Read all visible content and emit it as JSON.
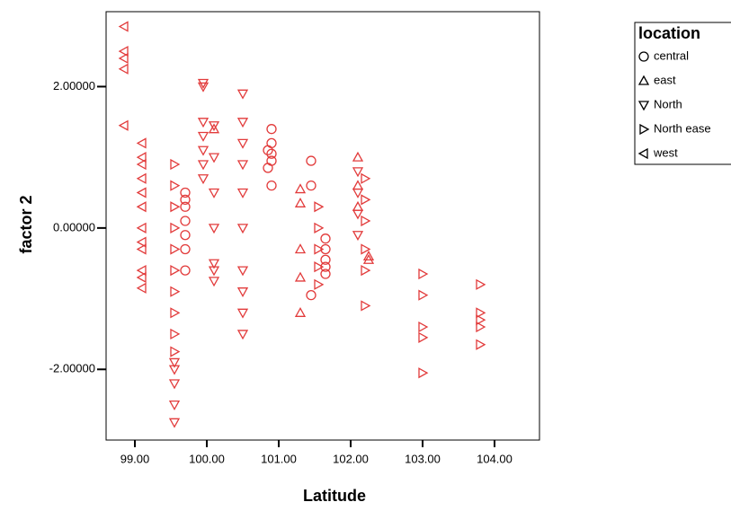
{
  "chart_data": {
    "type": "scatter",
    "x_label": "Latitude",
    "y_label": "factor 2",
    "legend_title": "location",
    "legend_position": "outside right",
    "xlim": [
      98.6,
      104.625
    ],
    "ylim": [
      -3.0,
      3.06
    ],
    "xticks": [
      {
        "value": 99,
        "label": "99.00"
      },
      {
        "value": 100,
        "label": "100.00"
      },
      {
        "value": 101,
        "label": "101.00"
      },
      {
        "value": 102,
        "label": "102.00"
      },
      {
        "value": 103,
        "label": "103.00"
      },
      {
        "value": 104,
        "label": "104.00"
      }
    ],
    "yticks": [
      {
        "value": -2,
        "label": "-2.00000"
      },
      {
        "value": 0,
        "label": "0.00000"
      },
      {
        "value": 2,
        "label": "2.00000"
      }
    ],
    "series": [
      {
        "name": "central",
        "marker": "circle",
        "color": "#e23b3b",
        "x": [
          99.7,
          99.7,
          99.7,
          99.7,
          99.7,
          99.7,
          99.7,
          100.85,
          100.85,
          100.9,
          100.9,
          100.9,
          100.9,
          100.9,
          101.45,
          101.45,
          101.45,
          101.65,
          101.65,
          101.65,
          101.65,
          101.65
        ],
        "values": [
          0.5,
          0.4,
          0.3,
          0.1,
          -0.1,
          -0.3,
          -0.6,
          1.1,
          0.85,
          1.4,
          1.2,
          1.05,
          0.95,
          0.6,
          0.95,
          0.6,
          -0.95,
          -0.15,
          -0.3,
          -0.45,
          -0.55,
          -0.65
        ]
      },
      {
        "name": "east",
        "marker": "up",
        "color": "#e23b3b",
        "x": [
          100.1,
          101.3,
          101.3,
          101.3,
          101.3,
          101.3,
          102.1,
          102.1,
          102.1,
          102.25,
          102.25
        ],
        "values": [
          1.4,
          0.55,
          0.35,
          -0.3,
          -0.7,
          -1.2,
          1.0,
          0.6,
          0.3,
          -0.4,
          -0.45
        ]
      },
      {
        "name": "North",
        "marker": "down",
        "color": "#e23b3b",
        "x": [
          99.55,
          99.55,
          99.55,
          99.55,
          99.55,
          99.95,
          99.95,
          99.95,
          99.95,
          99.95,
          99.95,
          99.95,
          100.1,
          100.1,
          100.1,
          100.1,
          100.1,
          100.1,
          100.1,
          100.5,
          100.5,
          100.5,
          100.5,
          100.5,
          100.5,
          100.5,
          100.5,
          100.5,
          100.5,
          102.1,
          102.1,
          102.1,
          102.1
        ],
        "values": [
          -1.9,
          -2.0,
          -2.2,
          -2.5,
          -2.75,
          2.05,
          2.0,
          1.5,
          1.3,
          1.1,
          0.9,
          0.7,
          1.45,
          1.0,
          0.5,
          0.0,
          -0.5,
          -0.6,
          -0.75,
          1.9,
          1.5,
          1.2,
          0.9,
          0.5,
          0.0,
          -0.6,
          -0.9,
          -1.2,
          -1.5,
          0.8,
          0.5,
          0.2,
          -0.1
        ]
      },
      {
        "name": "North ease",
        "marker": "right",
        "color": "#e23b3b",
        "x": [
          99.55,
          99.55,
          99.55,
          99.55,
          99.55,
          99.55,
          99.55,
          99.55,
          99.55,
          99.55,
          101.55,
          101.55,
          101.55,
          101.55,
          101.55,
          102.2,
          102.2,
          102.2,
          102.2,
          102.2,
          102.2,
          103.0,
          103.0,
          103.0,
          103.0,
          103.0,
          103.8,
          103.8,
          103.8,
          103.8,
          103.8
        ],
        "values": [
          0.9,
          0.6,
          0.3,
          0.0,
          -0.3,
          -0.6,
          -0.9,
          -1.2,
          -1.5,
          -1.75,
          0.3,
          0.0,
          -0.3,
          -0.55,
          -0.8,
          0.7,
          0.4,
          0.1,
          -0.3,
          -0.6,
          -1.1,
          -0.65,
          -0.95,
          -1.4,
          -1.55,
          -2.05,
          -0.8,
          -1.2,
          -1.3,
          -1.4,
          -1.65
        ]
      },
      {
        "name": "west",
        "marker": "left",
        "color": "#e23b3b",
        "x": [
          98.85,
          98.85,
          98.85,
          98.85,
          98.85,
          99.1,
          99.1,
          99.1,
          99.1,
          99.1,
          99.1,
          99.1,
          99.1,
          99.1,
          99.1,
          99.1,
          99.1
        ],
        "values": [
          2.85,
          2.5,
          2.4,
          2.25,
          1.45,
          1.2,
          1.0,
          0.9,
          0.7,
          0.5,
          0.3,
          0.0,
          -0.2,
          -0.3,
          -0.6,
          -0.7,
          -0.85
        ]
      }
    ]
  }
}
